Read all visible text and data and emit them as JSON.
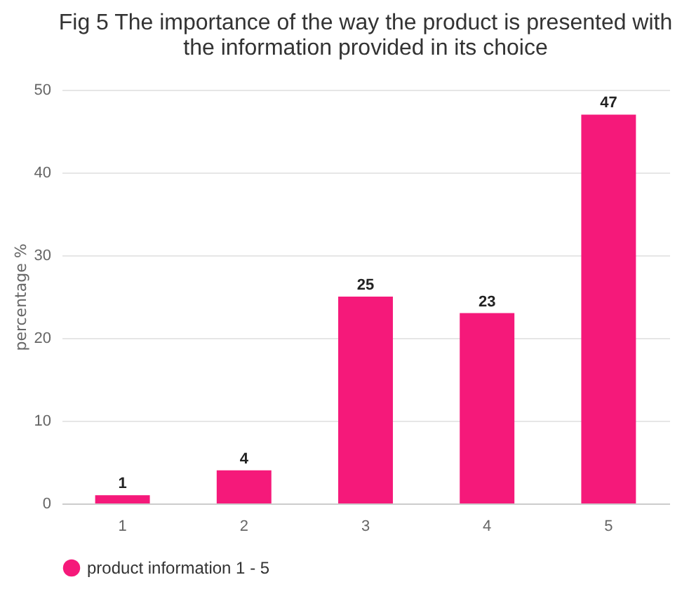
{
  "chart_data": {
    "type": "bar",
    "title": "Fig 5 The importance of the way the product is presented with the information provided in its choice",
    "ylabel": "percentage %",
    "categories": [
      "1",
      "2",
      "3",
      "4",
      "5"
    ],
    "series": [
      {
        "name": "product information 1 - 5",
        "color": "#f5197a",
        "values": [
          1,
          4,
          25,
          23,
          47
        ]
      }
    ],
    "ylim": [
      0,
      50
    ],
    "yticks": [
      0,
      10,
      20,
      30,
      40,
      50
    ],
    "grid": "y",
    "legend": "bottom",
    "data_labels": true
  }
}
